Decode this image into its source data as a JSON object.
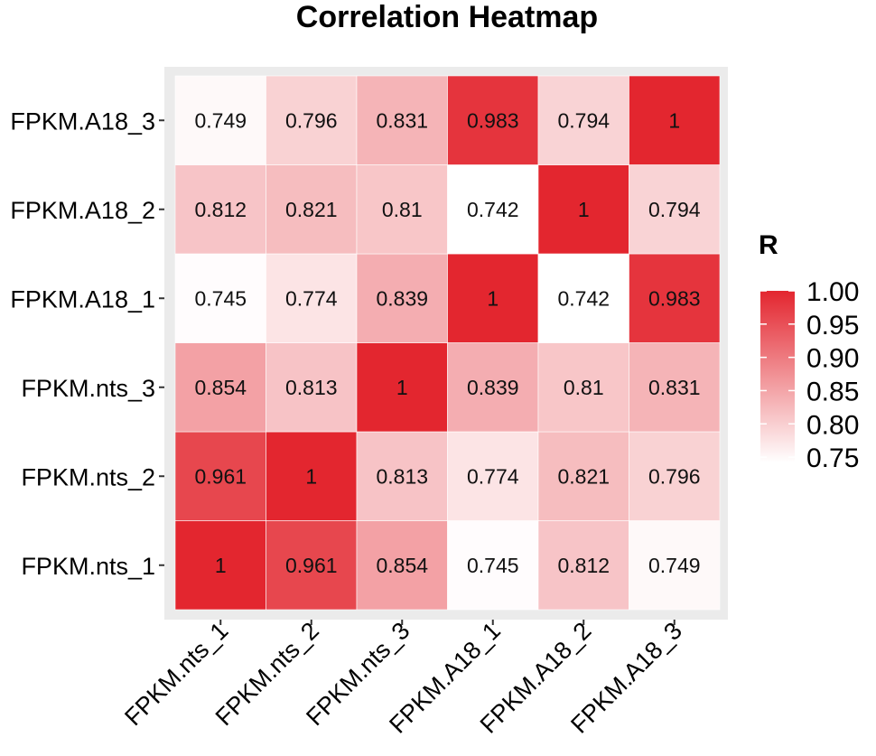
{
  "chart_data": {
    "type": "heatmap",
    "title": "Correlation Heatmap",
    "x_categories": [
      "FPKM.nts_1",
      "FPKM.nts_2",
      "FPKM.nts_3",
      "FPKM.A18_1",
      "FPKM.A18_2",
      "FPKM.A18_3"
    ],
    "y_categories": [
      "FPKM.nts_1",
      "FPKM.nts_2",
      "FPKM.nts_3",
      "FPKM.A18_1",
      "FPKM.A18_2",
      "FPKM.A18_3"
    ],
    "values": [
      [
        1,
        0.961,
        0.854,
        0.745,
        0.812,
        0.749
      ],
      [
        0.961,
        1,
        0.813,
        0.774,
        0.821,
        0.796
      ],
      [
        0.854,
        0.813,
        1,
        0.839,
        0.81,
        0.831
      ],
      [
        0.745,
        0.774,
        0.839,
        1,
        0.742,
        0.983
      ],
      [
        0.812,
        0.821,
        0.81,
        0.742,
        1,
        0.794
      ],
      [
        0.749,
        0.796,
        0.831,
        0.983,
        0.794,
        1
      ]
    ],
    "labels": [
      [
        "1",
        "0.961",
        "0.854",
        "0.745",
        "0.812",
        "0.749"
      ],
      [
        "0.961",
        "1",
        "0.813",
        "0.774",
        "0.821",
        "0.796"
      ],
      [
        "0.854",
        "0.813",
        "1",
        "0.839",
        "0.81",
        "0.831"
      ],
      [
        "0.745",
        "0.774",
        "0.839",
        "1",
        "0.742",
        "0.983"
      ],
      [
        "0.812",
        "0.821",
        "0.81",
        "0.742",
        "1",
        "0.794"
      ],
      [
        "0.749",
        "0.796",
        "0.831",
        "0.983",
        "0.794",
        "1"
      ]
    ],
    "xlabel": "",
    "ylabel": "",
    "color_range": [
      0.742,
      1.0
    ],
    "color_low": "#ffffff",
    "color_high": "#e3262f",
    "panel_background": "#ebebeb",
    "legend": {
      "title": "R",
      "placement": "right",
      "ticks": [
        1.0,
        0.95,
        0.9,
        0.85,
        0.8,
        0.75
      ],
      "tick_labels": [
        "1.00",
        "0.95",
        "0.90",
        "0.85",
        "0.80",
        "0.75"
      ]
    }
  }
}
